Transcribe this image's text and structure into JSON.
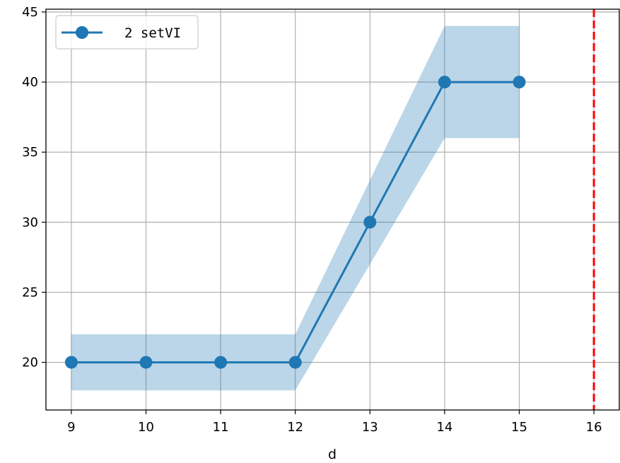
{
  "chart_data": {
    "type": "line",
    "title": "",
    "xlabel": "d",
    "ylabel": "",
    "xlim": [
      8.66,
      16.34
    ],
    "ylim": [
      16.6,
      45.2
    ],
    "x_ticks": [
      9,
      10,
      11,
      12,
      13,
      14,
      15,
      16
    ],
    "y_ticks": [
      20,
      25,
      30,
      35,
      40,
      45
    ],
    "grid": true,
    "legend_position": "top-left",
    "series": [
      {
        "name": "2 setVI",
        "color": "#1f77b4",
        "marker": "circle",
        "x": [
          9,
          10,
          11,
          12,
          13,
          14,
          15
        ],
        "y": [
          20,
          20,
          20,
          20,
          30,
          40,
          40
        ],
        "lower": [
          18,
          18,
          18,
          18,
          27,
          36,
          36
        ],
        "upper": [
          22,
          22,
          22,
          22,
          33,
          44,
          44
        ],
        "band_color": "#1f77b4",
        "band_opacity": 0.3
      }
    ],
    "reference_lines": [
      {
        "orientation": "vertical",
        "x": 16,
        "color": "#ff0000",
        "style": "dashed"
      }
    ]
  }
}
